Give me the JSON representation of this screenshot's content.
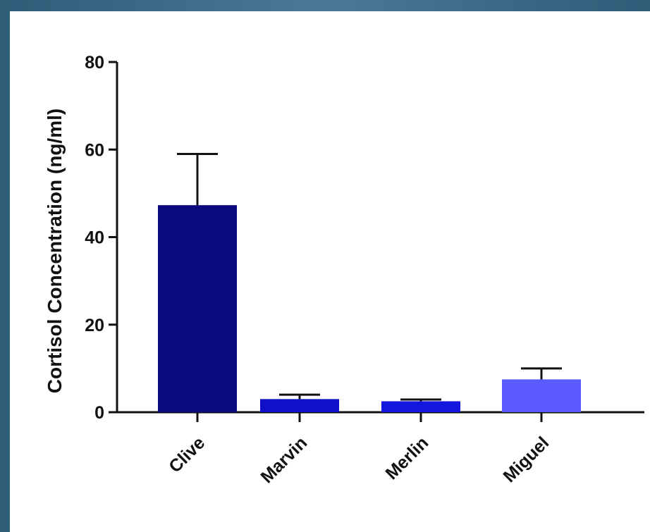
{
  "chart_data": {
    "type": "bar",
    "categories": [
      "Clive",
      "Marvin",
      "Merlin",
      "Miguel"
    ],
    "values": [
      47.3,
      3.0,
      2.5,
      7.5
    ],
    "error_upper": [
      59.0,
      4.0,
      2.9,
      10.0
    ],
    "bar_colors": [
      "#0a0a7e",
      "#1010c8",
      "#1515e0",
      "#5b5bff"
    ],
    "title": "",
    "xlabel": "",
    "ylabel": "Cortisol Concentration (ng/ml)",
    "ylim": [
      0,
      80
    ],
    "yticks": [
      0,
      20,
      40,
      60,
      80
    ],
    "grid": false
  }
}
